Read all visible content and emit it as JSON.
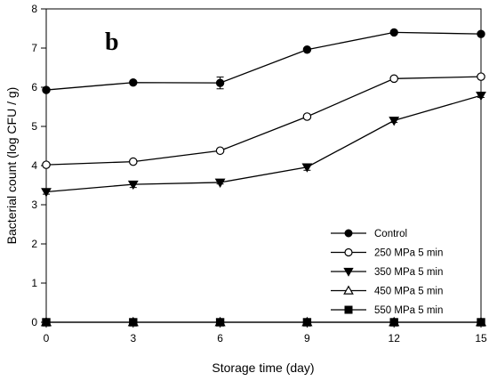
{
  "chart_data": {
    "type": "line",
    "panel_label": "b",
    "xlabel": "Storage time (day)",
    "ylabel": "Bacterial count (log CFU / g)",
    "x": [
      0,
      3,
      6,
      9,
      12,
      15
    ],
    "xticks": [
      "0",
      "3",
      "6",
      "9",
      "12",
      "15"
    ],
    "yticks": [
      "0",
      "1",
      "2",
      "3",
      "4",
      "5",
      "6",
      "7",
      "8"
    ],
    "xlim": [
      0,
      15
    ],
    "ylim": [
      0,
      8
    ],
    "grid": false,
    "legend_position": "bottom-right",
    "series": [
      {
        "name": "Control",
        "marker": "filled-circle",
        "values": [
          5.93,
          6.12,
          6.11,
          6.96,
          7.4,
          7.36
        ],
        "errors": [
          0.03,
          0.03,
          0.15,
          0.04,
          0.03,
          0.03
        ]
      },
      {
        "name": "250 MPa 5 min",
        "marker": "open-circle",
        "values": [
          4.02,
          4.1,
          4.38,
          5.25,
          6.22,
          6.27
        ],
        "errors": [
          0.03,
          0.03,
          0.04,
          0.03,
          0.03,
          0.03
        ]
      },
      {
        "name": "350 MPa 5 min",
        "marker": "filled-triangle-down",
        "values": [
          3.33,
          3.52,
          3.57,
          3.96,
          5.15,
          5.79
        ],
        "errors": [
          0.06,
          0.08,
          0.04,
          0.08,
          0.05,
          0.05
        ]
      },
      {
        "name": "450 MPa 5 min",
        "marker": "open-triangle-up",
        "values": [
          0,
          0,
          0,
          0,
          0,
          0
        ],
        "errors": [
          0,
          0,
          0,
          0,
          0,
          0
        ]
      },
      {
        "name": "550 MPa 5 min",
        "marker": "filled-square",
        "values": [
          0,
          0,
          0,
          0,
          0,
          0
        ],
        "errors": [
          0,
          0,
          0,
          0,
          0,
          0
        ]
      }
    ],
    "colors": {
      "line": "#000000",
      "marker_fill": "#000000",
      "open_fill": "#ffffff"
    }
  }
}
